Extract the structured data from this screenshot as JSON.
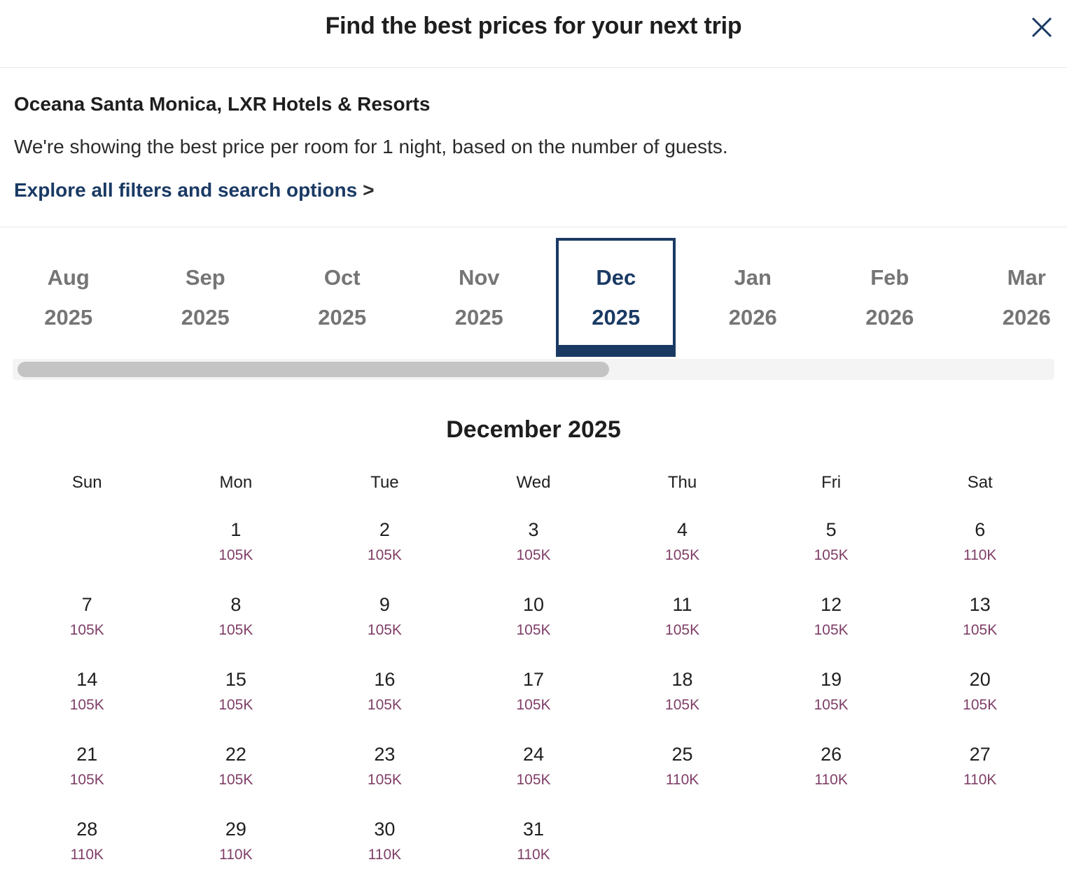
{
  "modal": {
    "title": "Find the best prices for your next trip"
  },
  "hotel": {
    "name": "Oceana Santa Monica, LXR Hotels & Resorts",
    "description": "We're showing the best price per room for 1 night, based on the number of guests.",
    "filters_link": "Explore all filters and search options",
    "filters_link_arrow": ">"
  },
  "icons": {
    "close": "close-x"
  },
  "colors": {
    "navy": "#1a3a64",
    "tab_gray": "#757575",
    "price_plum": "#7f3e67",
    "divider": "#e8e8e8",
    "scrollbar_track": "#f4f4f4",
    "scrollbar_thumb": "#c4c4c4"
  },
  "month_tabs": [
    {
      "month": "Aug",
      "year": "2025",
      "selected": false
    },
    {
      "month": "Sep",
      "year": "2025",
      "selected": false
    },
    {
      "month": "Oct",
      "year": "2025",
      "selected": false
    },
    {
      "month": "Nov",
      "year": "2025",
      "selected": false
    },
    {
      "month": "Dec",
      "year": "2025",
      "selected": true
    },
    {
      "month": "Jan",
      "year": "2026",
      "selected": false
    },
    {
      "month": "Feb",
      "year": "2026",
      "selected": false
    },
    {
      "month": "Mar",
      "year": "2026",
      "selected": false
    }
  ],
  "calendar": {
    "title": "December 2025",
    "day_headers": [
      "Sun",
      "Mon",
      "Tue",
      "Wed",
      "Thu",
      "Fri",
      "Sat"
    ],
    "weeks": [
      [
        null,
        {
          "day": "1",
          "price": "105K"
        },
        {
          "day": "2",
          "price": "105K"
        },
        {
          "day": "3",
          "price": "105K"
        },
        {
          "day": "4",
          "price": "105K"
        },
        {
          "day": "5",
          "price": "105K"
        },
        {
          "day": "6",
          "price": "110K"
        }
      ],
      [
        {
          "day": "7",
          "price": "105K"
        },
        {
          "day": "8",
          "price": "105K"
        },
        {
          "day": "9",
          "price": "105K"
        },
        {
          "day": "10",
          "price": "105K"
        },
        {
          "day": "11",
          "price": "105K"
        },
        {
          "day": "12",
          "price": "105K"
        },
        {
          "day": "13",
          "price": "105K"
        }
      ],
      [
        {
          "day": "14",
          "price": "105K"
        },
        {
          "day": "15",
          "price": "105K"
        },
        {
          "day": "16",
          "price": "105K"
        },
        {
          "day": "17",
          "price": "105K"
        },
        {
          "day": "18",
          "price": "105K"
        },
        {
          "day": "19",
          "price": "105K"
        },
        {
          "day": "20",
          "price": "105K"
        }
      ],
      [
        {
          "day": "21",
          "price": "105K"
        },
        {
          "day": "22",
          "price": "105K"
        },
        {
          "day": "23",
          "price": "105K"
        },
        {
          "day": "24",
          "price": "105K"
        },
        {
          "day": "25",
          "price": "110K"
        },
        {
          "day": "26",
          "price": "110K"
        },
        {
          "day": "27",
          "price": "110K"
        }
      ],
      [
        {
          "day": "28",
          "price": "110K"
        },
        {
          "day": "29",
          "price": "110K"
        },
        {
          "day": "30",
          "price": "110K"
        },
        {
          "day": "31",
          "price": "110K"
        },
        null,
        null,
        null
      ]
    ]
  }
}
